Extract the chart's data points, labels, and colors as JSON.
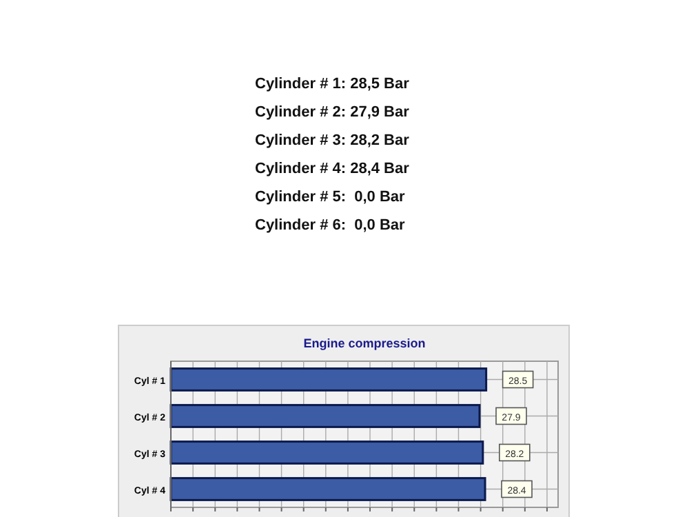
{
  "chart_data": {
    "type": "bar",
    "orientation": "horizontal",
    "title": "Engine compression",
    "categories": [
      "Cyl # 1",
      "Cyl # 2",
      "Cyl # 3",
      "Cyl # 4"
    ],
    "values": [
      28.5,
      27.9,
      28.2,
      28.4
    ],
    "color": "#3d5ca6",
    "data_labels": true,
    "xlim": [
      0,
      35
    ],
    "xticks": [
      {
        "value": 0,
        "label": null
      },
      {
        "value": 2,
        "label": null
      },
      {
        "value": 4,
        "label": null
      },
      {
        "value": 6,
        "label": null
      },
      {
        "value": 8,
        "label": null
      },
      {
        "value": 10,
        "label": null
      },
      {
        "value": 12,
        "label": null
      },
      {
        "value": 14,
        "label": null
      },
      {
        "value": 16,
        "label": null
      },
      {
        "value": 18,
        "label": null
      },
      {
        "value": 20,
        "label": null
      },
      {
        "value": 22,
        "label": null
      },
      {
        "value": 24,
        "label": null
      },
      {
        "value": 26,
        "label": null
      },
      {
        "value": 28,
        "label": null
      },
      {
        "value": 30,
        "label": null
      },
      {
        "value": 32,
        "label": null
      },
      {
        "value": 34,
        "label": null
      }
    ],
    "grid": true,
    "tick_labels": "y",
    "annotations": [
      "Cylinder # 1: 28,5 Bar",
      "Cylinder # 2: 27,9 Bar",
      "Cylinder # 3: 28,2 Bar",
      "Cylinder # 4: 28,4 Bar",
      "Cylinder # 5:  0,0 Bar",
      "Cylinder # 6:  0,0 Bar"
    ]
  }
}
